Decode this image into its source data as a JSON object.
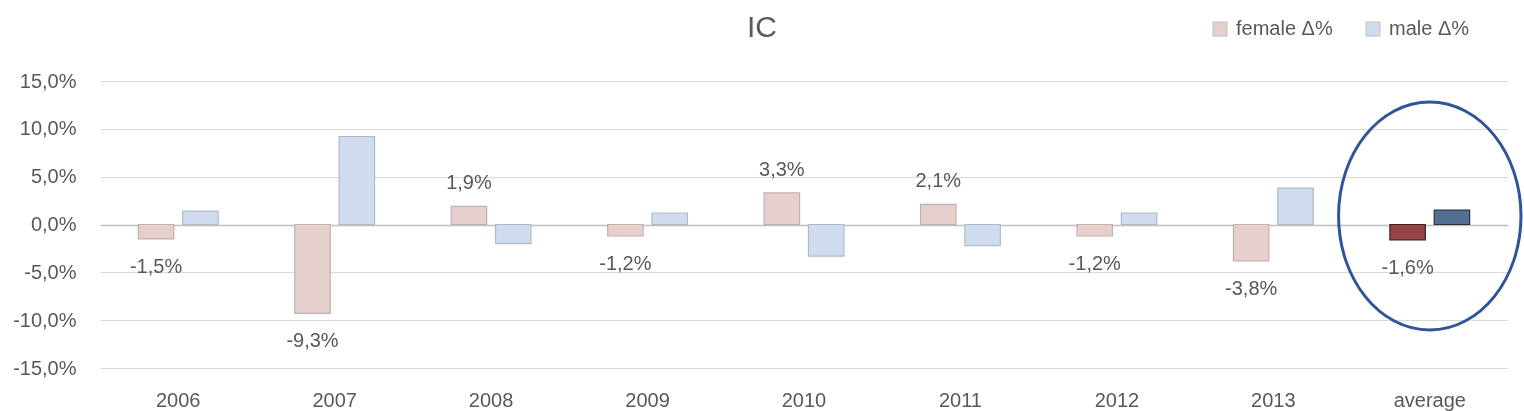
{
  "chart_data": {
    "type": "bar",
    "title": "IC",
    "categories": [
      "2006",
      "2007",
      "2008",
      "2009",
      "2010",
      "2011",
      "2012",
      "2013",
      "average"
    ],
    "series": [
      {
        "name": "female Δ%",
        "color": "#e6d0ce",
        "colors": [
          "#e6d0ce",
          "#e6d0ce",
          "#e6d0ce",
          "#e6d0ce",
          "#e6d0ce",
          "#e6d0ce",
          "#e6d0ce",
          "#e6d0ce",
          "#954545"
        ],
        "values": [
          -1.5,
          -9.3,
          1.9,
          -1.2,
          3.3,
          2.1,
          -1.2,
          -3.8,
          -1.6
        ],
        "value_labels": [
          "-1,5%",
          "-9,3%",
          "1,9%",
          "-1,2%",
          "3,3%",
          "2,1%",
          "-1,2%",
          "-3,8%",
          "-1,6%"
        ]
      },
      {
        "name": "male Δ%",
        "color": "#cfdcee",
        "colors": [
          "#cfdcee",
          "#cfdcee",
          "#cfdcee",
          "#cfdcee",
          "#cfdcee",
          "#cfdcee",
          "#cfdcee",
          "#cfdcee",
          "#546e92"
        ],
        "values": [
          1.4,
          9.2,
          -2.0,
          1.2,
          -3.3,
          -2.2,
          1.2,
          3.8,
          1.5
        ]
      }
    ],
    "ylim": [
      -15,
      15
    ],
    "yticks": [
      {
        "value": 15,
        "label": "15,0%"
      },
      {
        "value": 10,
        "label": "10,0%"
      },
      {
        "value": 5,
        "label": "5,0%"
      },
      {
        "value": 0,
        "label": "0,0%"
      },
      {
        "value": -5,
        "label": "-5,0%"
      },
      {
        "value": -10,
        "label": "-10,0%"
      },
      {
        "value": -15,
        "label": "-15,0%"
      }
    ],
    "grid": "y",
    "legend": "top right"
  }
}
